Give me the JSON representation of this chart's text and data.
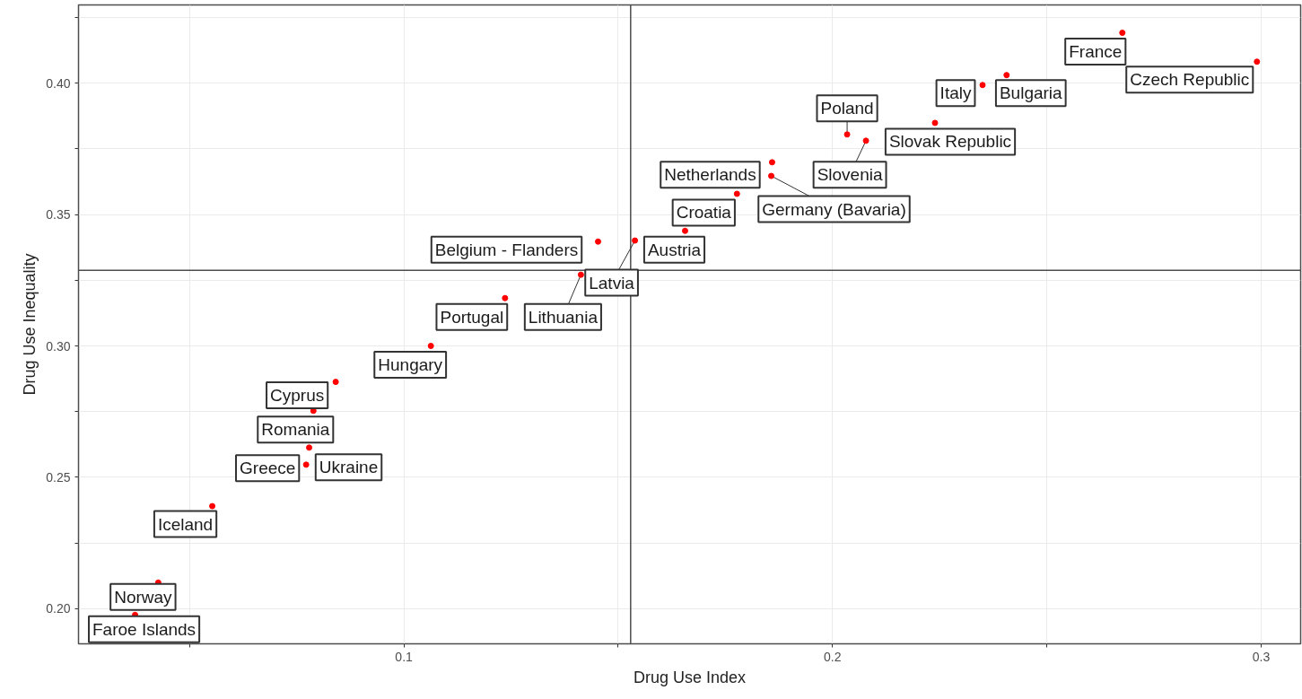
{
  "chart_data": {
    "type": "scatter",
    "xlabel": "Drug Use Index",
    "ylabel": "Drug Use Inequality",
    "xlim": [
      0.0241,
      0.3092
    ],
    "ylim": [
      0.1866,
      0.4298
    ],
    "xticks": [
      {
        "value": 0.05,
        "label": null
      },
      0.1,
      {
        "value": 0.15,
        "label": null
      },
      0.2,
      {
        "value": 0.25,
        "label": null
      },
      0.3
    ],
    "yticks": [
      {
        "value": 0.2,
        "label": "0.20"
      },
      {
        "value": 0.225,
        "label": null
      },
      {
        "value": 0.25,
        "label": "0.25"
      },
      {
        "value": 0.275,
        "label": null
      },
      {
        "value": 0.3,
        "label": "0.30"
      },
      {
        "value": 0.325,
        "label": null
      },
      {
        "value": 0.35,
        "label": "0.35"
      },
      {
        "value": 0.375,
        "label": null
      },
      {
        "value": 0.4,
        "label": "0.40"
      },
      {
        "value": 0.425,
        "label": null
      }
    ],
    "grid": true,
    "marker": "circle",
    "ref_lines": [
      {
        "axis": "x",
        "value": 0.1529,
        "label": null,
        "color": "#4d4d4d"
      },
      {
        "axis": "y",
        "value": 0.3288,
        "label": null,
        "color": "#4d4d4d"
      }
    ],
    "series": [
      {
        "color": "#ff0000",
        "x": [
          0.2676,
          0.299,
          0.2406,
          0.235,
          0.2034,
          0.2078,
          0.2239,
          0.1859,
          0.1857,
          0.1777,
          0.1656,
          0.1539,
          0.1453,
          0.1413,
          0.1236,
          0.1063,
          0.0841,
          0.0789,
          0.0779,
          0.0772,
          0.0553,
          0.0427,
          0.0373
        ],
        "values": [
          0.4192,
          0.4082,
          0.4031,
          0.3993,
          0.3805,
          0.3781,
          0.3849,
          0.3699,
          0.3647,
          0.3579,
          0.3438,
          0.3401,
          0.3397,
          0.3271,
          0.3182,
          0.3,
          0.2863,
          0.2753,
          0.2613,
          0.2548,
          0.239,
          0.2099,
          0.1976
        ],
        "value_labels": [
          "France",
          "Czech Republic",
          "Bulgaria",
          "Italy",
          "Poland",
          "Slovenia",
          "Slovak Republic",
          "Netherlands",
          "Germany (Bavaria)",
          "Croatia",
          "Austria",
          "Latvia",
          "Belgium - Flanders",
          "Lithuania",
          "Portugal",
          "Hungary",
          "Cyprus",
          "Romania",
          "Ukraine",
          "Greece",
          "Iceland",
          "Norway",
          "Faroe Islands"
        ]
      }
    ]
  }
}
